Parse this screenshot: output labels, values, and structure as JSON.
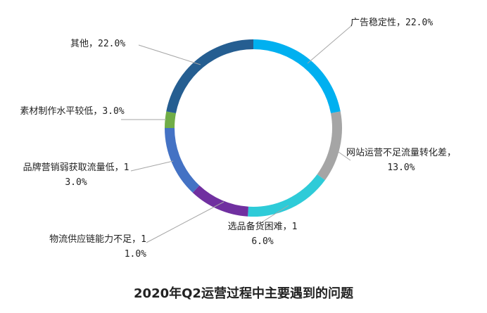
{
  "chart_data": {
    "type": "donut",
    "title": "2020年Q2运营过程中主要遇到的问题",
    "categories": [
      "广告稳定性",
      "网站运营不足流量转化差",
      "选品备货困难",
      "物流供应链能力不足",
      "品牌营销弱获取流量低",
      "素材制作水平较低",
      "其他"
    ],
    "values": [
      22.0,
      13.0,
      16.0,
      11.0,
      13.0,
      3.0,
      22.0
    ],
    "value_labels": [
      "22.0%",
      "13.0%",
      "16.0%",
      "11.0%",
      "13.0%",
      "3.0%",
      "22.0%"
    ],
    "label_separator": "，",
    "colors": [
      "#00b0f0",
      "#a5a5a5",
      "#2ecbd8",
      "#7030a0",
      "#4472c4",
      "#70ad47",
      "#255e91"
    ]
  }
}
